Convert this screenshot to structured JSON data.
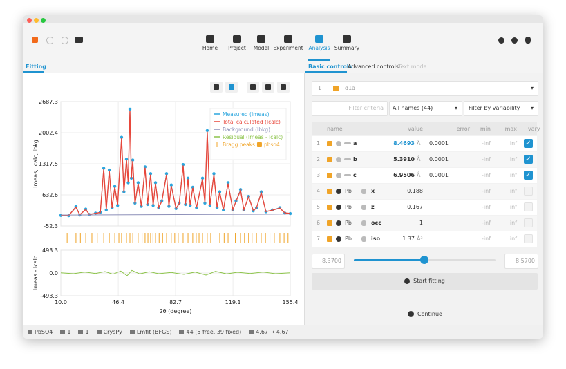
{
  "toolbar": {
    "items": [
      "Home",
      "Project",
      "Model",
      "Experiment",
      "Analysis",
      "Summary"
    ],
    "active": 4
  },
  "left_tab": "Fitting",
  "right_tabs": [
    "Basic controls",
    "Advanced controls",
    "Text mode"
  ],
  "right_tab_active": 0,
  "chart_data": {
    "type": "line",
    "x_label": "2θ (degree)",
    "y_label": "Imeas, Icalc, Ibkg",
    "residual_y_label": "Imeas - Icalc",
    "xlim": [
      10.0,
      155.4
    ],
    "xticks": [
      {
        "value": 10,
        "label": "10.0"
      },
      46.4,
      82.7,
      119.1,
      155.4
    ],
    "ylim": [
      -52.3,
      2687.3
    ],
    "yticks": [
      -52.3,
      632.6,
      1317.5,
      2002.4,
      2687.3
    ],
    "residual_ylim": [
      -493.3,
      493.3
    ],
    "residual_yticks": [
      -493.3,
      {
        "value": 0,
        "label": "0.0"
      },
      493.3
    ],
    "grid": true,
    "series": [
      {
        "name": "Measured (Imeas)",
        "color": "#2ba6de",
        "x": [
          10,
          15,
          19.6,
          22,
          25.8,
          28,
          32,
          35,
          37.2,
          38.8,
          40.7,
          42.5,
          44.2,
          46,
          48.5,
          50,
          51.6,
          52.7,
          53.8,
          54.7,
          55.6,
          57,
          59,
          61,
          63.4,
          65,
          66.9,
          68.5,
          70,
          72,
          74,
          77,
          78.5,
          80,
          83,
          85,
          87.5,
          89,
          90.6,
          92,
          93.6,
          96,
          99.8,
          101.3,
          102.8,
          104.5,
          107,
          109,
          110.7,
          113,
          116,
          119,
          121,
          123.9,
          126,
          129,
          132,
          134,
          137,
          140,
          144,
          148.8,
          152,
          155.4
        ],
        "values": [
          180,
          175,
          380,
          190,
          320,
          200,
          230,
          250,
          1220,
          300,
          1180,
          350,
          820,
          400,
          1900,
          700,
          1420,
          900,
          2520,
          1000,
          1400,
          450,
          900,
          380,
          1250,
          420,
          1100,
          400,
          900,
          350,
          500,
          1100,
          380,
          850,
          330,
          450,
          1300,
          420,
          1000,
          400,
          800,
          350,
          1000,
          450,
          2050,
          400,
          1100,
          350,
          700,
          300,
          900,
          300,
          500,
          750,
          300,
          600,
          280,
          350,
          700,
          260,
          300,
          350,
          230,
          220
        ]
      },
      {
        "name": "Total calculated (Icalc)",
        "color": "#e8473b",
        "x": [
          10,
          15,
          19.6,
          22,
          25.8,
          28,
          32,
          35,
          37.2,
          38.8,
          40.7,
          42.5,
          44.2,
          46,
          48.5,
          50,
          51.6,
          52.7,
          53.8,
          54.7,
          55.6,
          57,
          59,
          61,
          63.4,
          65,
          66.9,
          68.5,
          70,
          72,
          74,
          77,
          78.5,
          80,
          83,
          85,
          87.5,
          89,
          90.6,
          92,
          93.6,
          96,
          99.8,
          101.3,
          102.8,
          104.5,
          107,
          109,
          110.7,
          113,
          116,
          119,
          121,
          123.9,
          126,
          129,
          132,
          134,
          137,
          140,
          144,
          148.8,
          152,
          155.4
        ],
        "values": [
          185,
          180,
          360,
          195,
          310,
          205,
          225,
          245,
          1200,
          310,
          1160,
          345,
          800,
          410,
          1880,
          690,
          1400,
          910,
          2480,
          990,
          1380,
          440,
          880,
          385,
          1230,
          425,
          1080,
          405,
          880,
          355,
          490,
          1080,
          385,
          830,
          335,
          440,
          1280,
          425,
          980,
          405,
          790,
          355,
          980,
          455,
          2020,
          405,
          1080,
          355,
          690,
          305,
          880,
          305,
          490,
          730,
          305,
          590,
          285,
          345,
          680,
          265,
          295,
          340,
          235,
          225
        ]
      },
      {
        "name": "Background (Ibkg)",
        "color": "#8c8fb8",
        "x": [
          10,
          155.4
        ],
        "values": [
          190,
          210
        ]
      },
      {
        "name": "Residual (Imeas - Icalc)",
        "color": "#8cc34a",
        "axis": "residual",
        "x": [
          10,
          18,
          25,
          32,
          38,
          43,
          48,
          52,
          55,
          60,
          66,
          72,
          80,
          88,
          95,
          102,
          108,
          115,
          122,
          130,
          138,
          146,
          155.4
        ],
        "values": [
          5,
          -15,
          20,
          -10,
          30,
          -25,
          40,
          -60,
          55,
          -20,
          25,
          -15,
          10,
          -30,
          20,
          -45,
          35,
          -20,
          15,
          -10,
          20,
          -15,
          5
        ]
      }
    ],
    "bragg": {
      "name": "Bragg peaks",
      "phase": "pbso4",
      "color": "#f0a428",
      "positions": [
        14,
        19.6,
        22.4,
        25.8,
        29.7,
        33.1,
        37.2,
        40.7,
        44.2,
        46.8,
        48.5,
        51.6,
        53.8,
        55.6,
        59,
        61.5,
        63.4,
        65.2,
        66.9,
        68.4,
        70,
        72.3,
        74.5,
        77,
        80,
        82.2,
        84.4,
        87.5,
        90.6,
        93.6,
        95.8,
        97.6,
        99.8,
        102.8,
        105,
        107,
        110.7,
        113.5,
        116,
        118.4,
        120.6,
        123.9,
        126.4,
        129,
        131.2,
        134,
        137,
        139.7,
        142.5,
        145.3,
        148.8,
        151.5,
        154
      ]
    }
  },
  "experiment_selector": {
    "index": "1",
    "name": "d1a"
  },
  "filters": {
    "criteria_placeholder": "Filter criteria",
    "names": "All names (44)",
    "variability": "Filter by variability"
  },
  "table": {
    "headers": [
      "name",
      "value",
      "error",
      "min",
      "max",
      "vary"
    ],
    "rows": [
      {
        "index": "1",
        "name": "a",
        "value": "8.4693",
        "unit": "Å",
        "error": "0.0001",
        "min": "-inf",
        "max": "inf",
        "vary": true,
        "selected": true
      },
      {
        "index": "2",
        "name": "b",
        "value": "5.3910",
        "unit": "Å",
        "error": "0.0001",
        "min": "-inf",
        "max": "inf",
        "vary": true
      },
      {
        "index": "3",
        "name": "c",
        "value": "6.9506",
        "unit": "Å",
        "error": "0.0001",
        "min": "-inf",
        "max": "inf",
        "vary": true
      },
      {
        "index": "4",
        "atom": "Pb",
        "name": "x",
        "value": "0.188",
        "min": "-inf",
        "max": "inf",
        "vary": false
      },
      {
        "index": "5",
        "atom": "Pb",
        "name": "z",
        "value": "0.167",
        "min": "-inf",
        "max": "inf",
        "vary": false
      },
      {
        "index": "6",
        "atom": "Pb",
        "name": "occ",
        "value": "1",
        "min": "-inf",
        "max": "inf",
        "vary": false
      },
      {
        "index": "7",
        "atom": "Pb",
        "name": "iso",
        "value": "1.37",
        "unit": "Å²",
        "min": "-inf",
        "max": "inf",
        "vary": false
      }
    ]
  },
  "slider": {
    "min": "8.3700",
    "max": "8.5700"
  },
  "buttons": {
    "start": "Start fitting",
    "continue": "Continue"
  },
  "status_bar": [
    "PbSO4",
    "1",
    "1",
    "CrysPy",
    "Lmfit (BFGS)",
    "44 (5 free, 39 fixed)",
    "4.67 → 4.67"
  ]
}
